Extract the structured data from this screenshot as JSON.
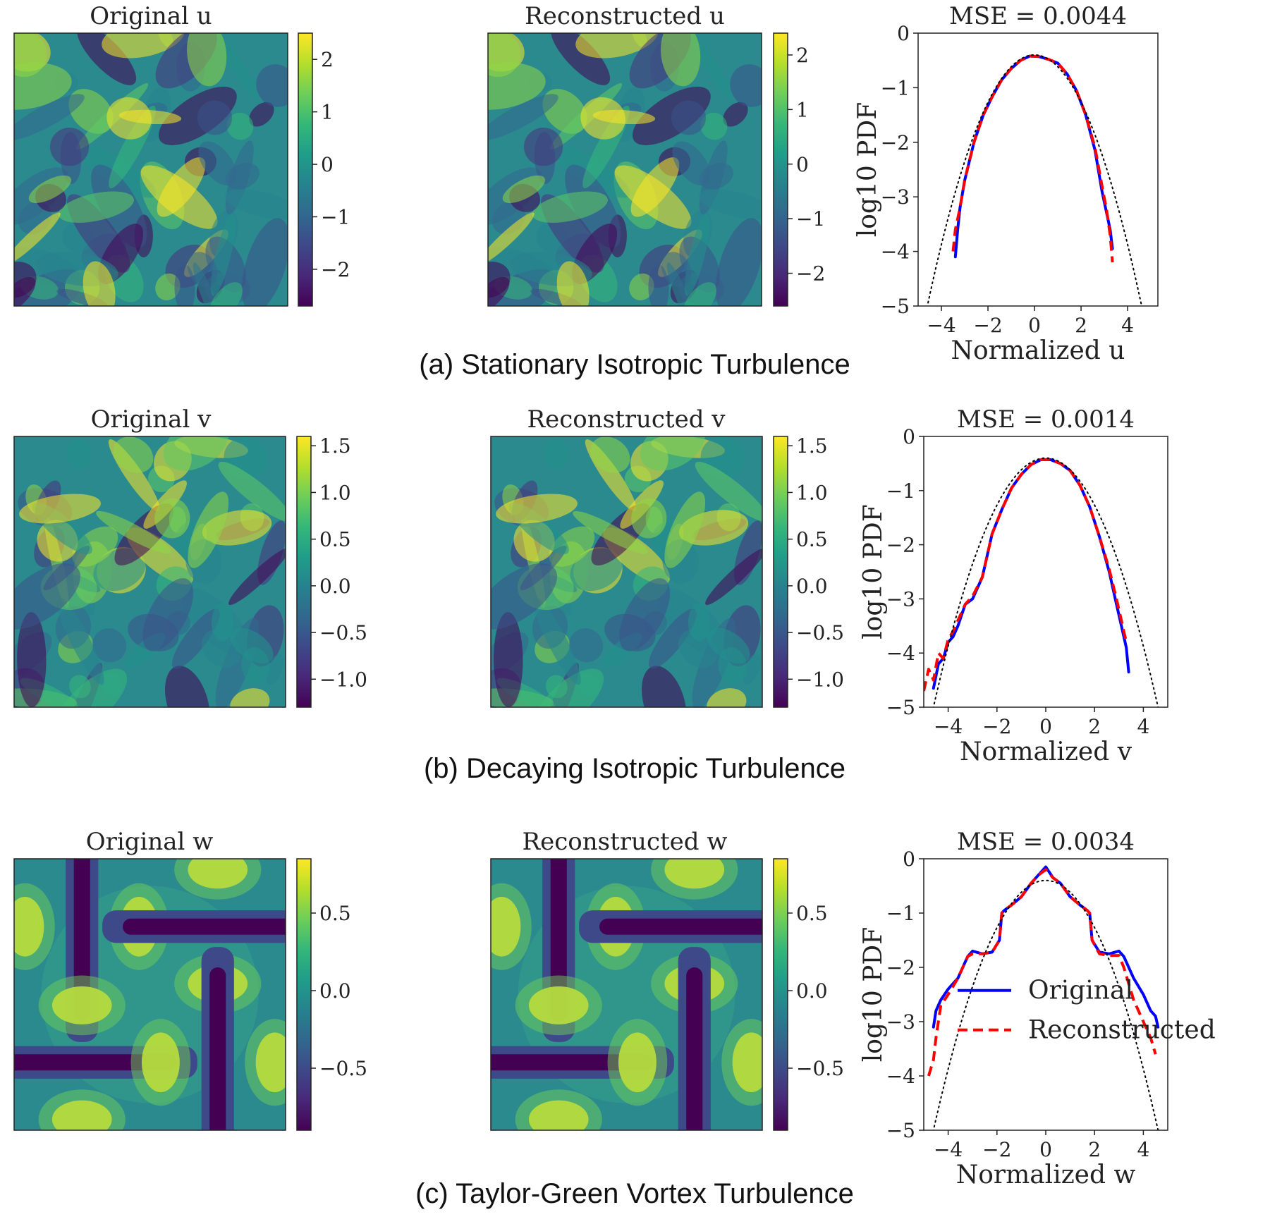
{
  "colormap": "viridis",
  "colors": {
    "original": "#0000ff",
    "reconstructed": "#ff0000",
    "gaussian": "#000000"
  },
  "rows": [
    {
      "caption": "(a) Stationary Isotropic Turbulence",
      "original_title": "Original u",
      "reconstructed_title": "Reconstructed u",
      "field_type": "turbulent",
      "colorbar_left": {
        "ticks": [
          "2",
          "1",
          "0",
          "−1",
          "−2"
        ],
        "range": [
          -2.7,
          2.5
        ]
      },
      "colorbar_right": {
        "ticks": [
          "2",
          "1",
          "0",
          "−1",
          "−2"
        ],
        "range": [
          -2.6,
          2.4
        ]
      }
    },
    {
      "caption": "(b) Decaying Isotropic Turbulence",
      "original_title": "Original v",
      "reconstructed_title": "Reconstructed v",
      "field_type": "turbulent",
      "colorbar_left": {
        "ticks": [
          "1.5",
          "1.0",
          "0.5",
          "0.0",
          "−0.5",
          "−1.0"
        ],
        "range": [
          -1.3,
          1.6
        ]
      },
      "colorbar_right": {
        "ticks": [
          "1.5",
          "1.0",
          "0.5",
          "0.0",
          "−0.5",
          "−1.0"
        ],
        "range": [
          -1.3,
          1.6
        ]
      }
    },
    {
      "caption": "(c) Taylor-Green Vortex Turbulence",
      "original_title": "Original w",
      "reconstructed_title": "Reconstructed w",
      "field_type": "taylor-green",
      "colorbar_left": {
        "ticks": [
          "0.5",
          "0.0",
          "−0.5"
        ],
        "range": [
          -0.9,
          0.85
        ]
      },
      "colorbar_right": {
        "ticks": [
          "0.5",
          "0.0",
          "−0.5"
        ],
        "range": [
          -0.9,
          0.85
        ]
      }
    }
  ],
  "chart_data": [
    {
      "type": "line",
      "title": "MSE = 0.0044",
      "xlabel": "Normalized u",
      "ylabel": "log10 PDF",
      "xlim": [
        -5.0,
        5.3
      ],
      "ylim": [
        -5,
        0
      ],
      "xticks": [
        -4,
        -2,
        0,
        2,
        4
      ],
      "yticks": [
        0,
        -1,
        -2,
        -3,
        -4,
        -5
      ],
      "legend": "none",
      "series": [
        {
          "name": "Original",
          "style": "solid",
          "x": [
            -3.4,
            -3.3,
            -3.2,
            -3.0,
            -2.6,
            -2.2,
            -1.8,
            -1.4,
            -1.0,
            -0.6,
            -0.2,
            0.2,
            0.6,
            1.0,
            1.4,
            1.8,
            2.2,
            2.6,
            2.9,
            3.1,
            3.25,
            3.35
          ],
          "y": [
            -4.1,
            -3.6,
            -3.2,
            -2.7,
            -2.0,
            -1.5,
            -1.15,
            -0.85,
            -0.65,
            -0.5,
            -0.42,
            -0.43,
            -0.48,
            -0.55,
            -0.75,
            -1.05,
            -1.5,
            -2.15,
            -2.9,
            -3.3,
            -3.6,
            -3.95
          ]
        },
        {
          "name": "Reconstructed",
          "style": "dashed",
          "x": [
            -3.5,
            -3.4,
            -3.2,
            -3.0,
            -2.6,
            -2.2,
            -1.8,
            -1.4,
            -1.0,
            -0.6,
            -0.2,
            0.2,
            0.6,
            1.0,
            1.4,
            1.8,
            2.2,
            2.6,
            2.9,
            3.1,
            3.25,
            3.35
          ],
          "y": [
            -4.0,
            -3.6,
            -3.2,
            -2.7,
            -2.0,
            -1.5,
            -1.15,
            -0.85,
            -0.65,
            -0.5,
            -0.42,
            -0.43,
            -0.48,
            -0.55,
            -0.75,
            -1.05,
            -1.5,
            -2.1,
            -2.8,
            -3.25,
            -3.7,
            -4.2
          ]
        },
        {
          "name": "Gaussian",
          "style": "dotted",
          "gaussian": true
        }
      ]
    },
    {
      "type": "line",
      "title": "MSE = 0.0014",
      "xlabel": "Normalized v",
      "ylabel": "log10 PDF",
      "xlim": [
        -5.0,
        5.0
      ],
      "ylim": [
        -5,
        0
      ],
      "xticks": [
        -4,
        -2,
        0,
        2,
        4
      ],
      "yticks": [
        0,
        -1,
        -2,
        -3,
        -4,
        -5
      ],
      "legend": "none",
      "series": [
        {
          "name": "Original",
          "style": "solid",
          "x": [
            -4.6,
            -4.4,
            -4.2,
            -4.0,
            -3.8,
            -3.6,
            -3.3,
            -3.0,
            -2.6,
            -2.2,
            -1.8,
            -1.4,
            -1.0,
            -0.6,
            -0.2,
            0.2,
            0.6,
            1.0,
            1.4,
            1.8,
            2.2,
            2.6,
            2.9,
            3.1,
            3.3,
            3.4
          ],
          "y": [
            -4.65,
            -4.2,
            -4.1,
            -3.8,
            -3.7,
            -3.5,
            -3.1,
            -3.0,
            -2.6,
            -1.8,
            -1.35,
            -0.95,
            -0.7,
            -0.52,
            -0.43,
            -0.43,
            -0.5,
            -0.63,
            -0.9,
            -1.3,
            -1.85,
            -2.5,
            -3.1,
            -3.5,
            -3.9,
            -4.35
          ]
        },
        {
          "name": "Reconstructed",
          "style": "dashed",
          "x": [
            -5.0,
            -4.8,
            -4.6,
            -4.4,
            -4.2,
            -4.0,
            -3.8,
            -3.6,
            -3.3,
            -3.0,
            -2.6,
            -2.2,
            -1.8,
            -1.4,
            -1.0,
            -0.6,
            -0.2,
            0.2,
            0.6,
            1.0,
            1.4,
            1.8,
            2.2,
            2.6,
            2.9,
            3.1,
            3.3
          ],
          "y": [
            -4.7,
            -4.3,
            -4.5,
            -4.0,
            -4.1,
            -3.75,
            -3.6,
            -3.4,
            -3.1,
            -2.95,
            -2.6,
            -1.8,
            -1.35,
            -0.95,
            -0.7,
            -0.52,
            -0.43,
            -0.43,
            -0.5,
            -0.63,
            -0.9,
            -1.3,
            -1.85,
            -2.45,
            -3.0,
            -3.4,
            -3.8
          ]
        },
        {
          "name": "Gaussian",
          "style": "dotted",
          "gaussian": true
        }
      ]
    },
    {
      "type": "line",
      "title": "MSE = 0.0034",
      "xlabel": "Normalized w",
      "ylabel": "log10 PDF",
      "xlim": [
        -5.0,
        5.0
      ],
      "ylim": [
        -5,
        0
      ],
      "xticks": [
        -4,
        -2,
        0,
        2,
        4
      ],
      "yticks": [
        0,
        -1,
        -2,
        -3,
        -4,
        -5
      ],
      "legend": "bottom-right",
      "series": [
        {
          "name": "Original",
          "style": "solid",
          "x": [
            -4.6,
            -4.5,
            -4.3,
            -4.0,
            -3.6,
            -3.2,
            -3.0,
            -2.6,
            -2.2,
            -1.9,
            -1.8,
            -1.7,
            -1.4,
            -1.0,
            -0.6,
            -0.3,
            0.0,
            0.3,
            0.6,
            1.0,
            1.4,
            1.7,
            1.8,
            1.9,
            2.2,
            2.6,
            3.0,
            3.2,
            3.6,
            4.0,
            4.3,
            4.5,
            4.6
          ],
          "y": [
            -3.1,
            -2.8,
            -2.6,
            -2.4,
            -2.2,
            -1.8,
            -1.7,
            -1.75,
            -1.72,
            -1.5,
            -1.0,
            -0.95,
            -0.85,
            -0.7,
            -0.45,
            -0.3,
            -0.15,
            -0.35,
            -0.45,
            -0.7,
            -0.85,
            -0.95,
            -1.0,
            -1.5,
            -1.72,
            -1.75,
            -1.7,
            -1.8,
            -2.2,
            -2.5,
            -2.8,
            -2.9,
            -3.1
          ]
        },
        {
          "name": "Reconstructed",
          "style": "dashed",
          "x": [
            -4.8,
            -4.6,
            -4.5,
            -4.3,
            -4.0,
            -3.6,
            -3.2,
            -3.0,
            -2.6,
            -2.2,
            -1.9,
            -1.8,
            -1.7,
            -1.4,
            -1.0,
            -0.6,
            -0.3,
            0.0,
            0.3,
            0.6,
            1.0,
            1.4,
            1.7,
            1.8,
            1.9,
            2.2,
            2.6,
            3.0,
            3.2,
            3.6,
            4.0,
            4.3,
            4.5
          ],
          "y": [
            -4.0,
            -3.7,
            -3.3,
            -2.7,
            -2.5,
            -2.2,
            -1.8,
            -1.75,
            -1.75,
            -1.72,
            -1.5,
            -1.0,
            -0.95,
            -0.85,
            -0.7,
            -0.45,
            -0.3,
            -0.2,
            -0.35,
            -0.45,
            -0.7,
            -0.85,
            -0.95,
            -1.0,
            -1.5,
            -1.75,
            -1.78,
            -1.78,
            -2.0,
            -2.6,
            -3.0,
            -3.3,
            -3.6
          ]
        },
        {
          "name": "Gaussian",
          "style": "dotted",
          "gaussian": true
        }
      ]
    }
  ]
}
